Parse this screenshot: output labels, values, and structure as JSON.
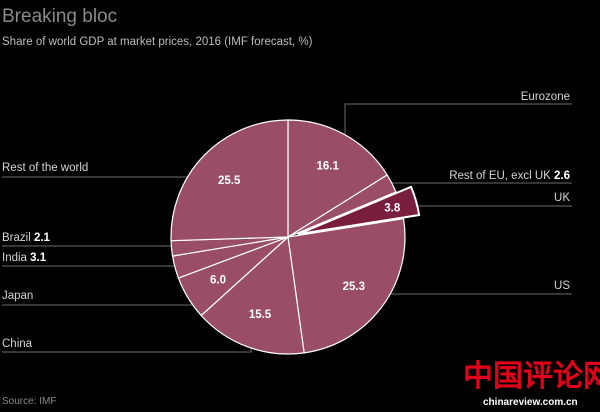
{
  "chart_data": {
    "type": "pie",
    "title": "Breaking bloc",
    "subtitle": "Share of world GDP at market prices, 2016 (IMF forecast, %)",
    "source": "Source: IMF",
    "slices": [
      {
        "name": "Eurozone",
        "value": 16.1,
        "show_in_label": false,
        "show_in_slice": true
      },
      {
        "name": "Rest of EU, excl UK",
        "value": 2.6,
        "show_in_label": true,
        "show_in_slice": false
      },
      {
        "name": "UK",
        "value": 3.8,
        "show_in_label": false,
        "show_in_slice": true,
        "exploded": true
      },
      {
        "name": "US",
        "value": 25.3,
        "show_in_label": false,
        "show_in_slice": true
      },
      {
        "name": "China",
        "value": 15.5,
        "show_in_label": false,
        "show_in_slice": true
      },
      {
        "name": "Japan",
        "value": 6.0,
        "show_in_label": false,
        "show_in_slice": true
      },
      {
        "name": "India",
        "value": 3.1,
        "show_in_label": true,
        "show_in_slice": false
      },
      {
        "name": "Brazil",
        "value": 2.1,
        "show_in_label": true,
        "show_in_slice": false
      },
      {
        "name": "Rest of the world",
        "value": 25.5,
        "show_in_label": false,
        "show_in_slice": true
      }
    ],
    "colors": {
      "slice": "#9a4d66",
      "highlight": "#7a1e3f",
      "stroke": "#ffffff"
    }
  },
  "watermark": {
    "text": "中国评论网",
    "url": "chinareview.com.cn"
  }
}
